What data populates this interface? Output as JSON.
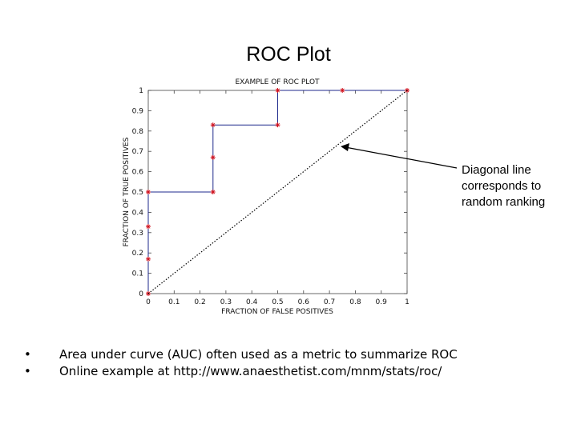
{
  "slide": {
    "title": "ROC Plot",
    "annotation": "Diagonal line corresponds to random ranking",
    "bullets": [
      "Area under curve (AUC) often used as a metric to summarize ROC",
      "Online example at http://www.anaesthetist.com/mnm/stats/roc/"
    ],
    "bullet_glyph": "•"
  },
  "chart_data": {
    "type": "line",
    "title": "EXAMPLE OF ROC PLOT",
    "xlabel": "FRACTION OF FALSE POSITIVES",
    "ylabel": "FRACTION OF TRUE POSITIVES",
    "xlim": [
      0,
      1
    ],
    "ylim": [
      0,
      1
    ],
    "x_ticks": [
      "0",
      "0.1",
      "0.2",
      "0.3",
      "0.4",
      "0.5",
      "0.6",
      "0.7",
      "0.8",
      "0.9",
      "1"
    ],
    "y_ticks": [
      "0",
      "0.1",
      "0.2",
      "0.3",
      "0.4",
      "0.5",
      "0.6",
      "0.7",
      "0.8",
      "0.9",
      "1"
    ],
    "grid": false,
    "series": [
      {
        "style": "step",
        "color": "#1f2a8c",
        "marker": "star",
        "marker_color": "#d0101c",
        "points": [
          [
            0,
            0
          ],
          [
            0,
            0.17
          ],
          [
            0,
            0.33
          ],
          [
            0,
            0.5
          ],
          [
            0.25,
            0.5
          ],
          [
            0.25,
            0.67
          ],
          [
            0.25,
            0.83
          ],
          [
            0.5,
            0.83
          ],
          [
            0.5,
            1
          ],
          [
            0.75,
            1
          ],
          [
            1,
            1
          ]
        ]
      },
      {
        "style": "dotted",
        "color": "#000000",
        "points": [
          [
            0,
            0
          ],
          [
            1,
            1
          ]
        ]
      }
    ]
  }
}
